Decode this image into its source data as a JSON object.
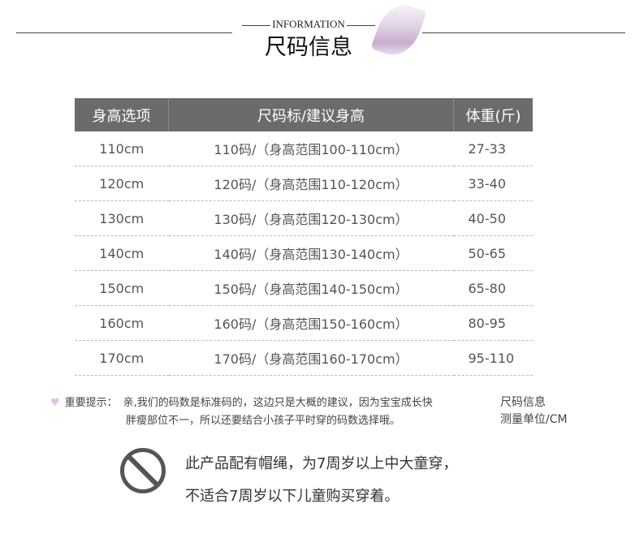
{
  "header": {
    "subtitle": "INFORMATION",
    "title": "尺码信息"
  },
  "table": {
    "headers": [
      "身高选项",
      "尺码标/建议身高",
      "体重(斤)"
    ],
    "rows": [
      [
        "110cm",
        "110码/（身高范围100-110cm）",
        "27-33"
      ],
      [
        "120cm",
        "120码/（身高范围110-120cm）",
        "33-40"
      ],
      [
        "130cm",
        "130码/（身高范围120-130cm）",
        "40-50"
      ],
      [
        "140cm",
        "140码/（身高范围130-140cm）",
        "50-65"
      ],
      [
        "150cm",
        "150码/（身高范围140-150cm）",
        "65-80"
      ],
      [
        "160cm",
        "160码/（身高范围150-160cm）",
        "80-95"
      ],
      [
        "170cm",
        "170码/（身高范围160-170cm）",
        "95-110"
      ]
    ]
  },
  "note": {
    "label": "重要提示：",
    "line1": "亲,我们的码数是标准码的，这边只是大概的建议，因为宝宝成长快",
    "line2": "胖瘦部位不一，所以还要结合小孩子平时穿的码数选择哦。"
  },
  "side": {
    "line1": "尺码信息",
    "line2": "测量单位/CM"
  },
  "warning": {
    "line1": "此产品配有帽绳，为7周岁以上中大童穿，",
    "line2": "不适合7周岁以下儿童购买穿着。"
  }
}
